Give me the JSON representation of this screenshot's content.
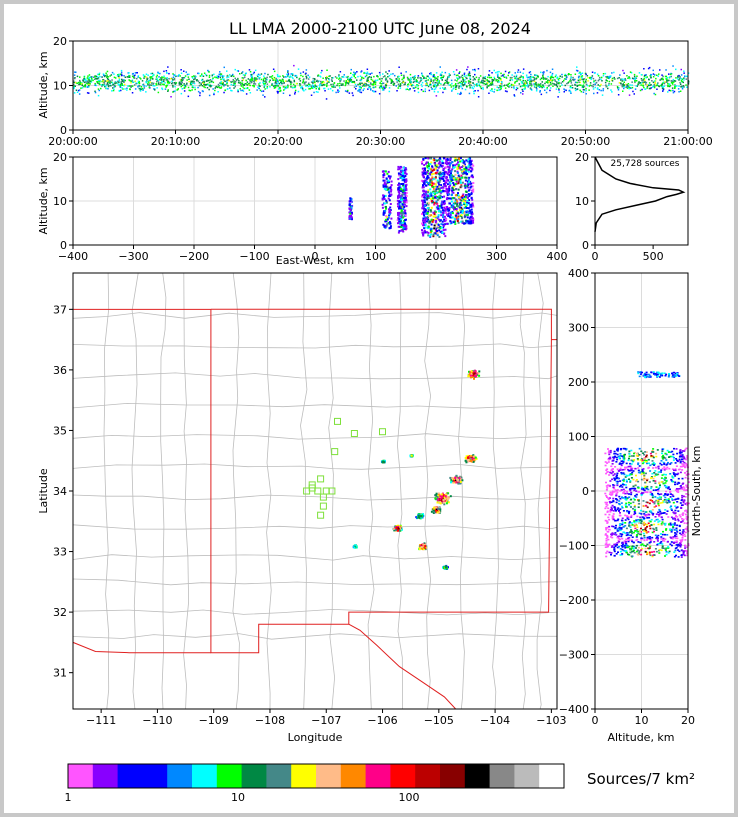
{
  "chart_data": [
    {
      "type": "scatter",
      "panel": "altitude-time",
      "title": "LL LMA 2000-2100 UTC June 08, 2024",
      "xlabel": "",
      "ylabel": "Altitude, km",
      "x_ticks": [
        "20:00:00",
        "20:10:00",
        "20:20:00",
        "20:30:00",
        "20:40:00",
        "20:50:00",
        "21:00:00"
      ],
      "y_ticks": [
        "0",
        "10",
        "20"
      ],
      "xlim": [
        "20:00:00",
        "21:00:00"
      ],
      "ylim": [
        0,
        20
      ],
      "density_peak_altitude_km": 11
    },
    {
      "type": "scatter",
      "panel": "east-west-altitude",
      "xlabel": "East-West, km",
      "ylabel": "Altitude, km",
      "x_ticks": [
        "−400",
        "−300",
        "−200",
        "−100",
        "0",
        "100",
        "200",
        "300",
        "400"
      ],
      "y_ticks": [
        "0",
        "10",
        "20"
      ],
      "xlim": [
        -400,
        400
      ],
      "ylim": [
        0,
        20
      ],
      "clusters": [
        {
          "x": [
            55,
            60
          ],
          "z": [
            6,
            11
          ]
        },
        {
          "x": [
            110,
            125
          ],
          "z": [
            4,
            17
          ]
        },
        {
          "x": [
            135,
            150
          ],
          "z": [
            3,
            18
          ]
        },
        {
          "x": [
            175,
            215
          ],
          "z": [
            2,
            20
          ]
        },
        {
          "x": [
            215,
            260
          ],
          "z": [
            5,
            20
          ]
        }
      ]
    },
    {
      "type": "line",
      "panel": "altitude-histogram",
      "annotation": "25,728 sources",
      "x_ticks": [
        "0",
        "500"
      ],
      "y_ticks": [
        "0",
        "10",
        "20"
      ],
      "xlim": [
        0,
        800
      ],
      "ylim": [
        0,
        20
      ],
      "points": [
        [
          0,
          3
        ],
        [
          10,
          5
        ],
        [
          60,
          7
        ],
        [
          180,
          8
        ],
        [
          350,
          9
        ],
        [
          520,
          10
        ],
        [
          620,
          11
        ],
        [
          700,
          11.5
        ],
        [
          760,
          12
        ],
        [
          720,
          12.5
        ],
        [
          500,
          13
        ],
        [
          300,
          14
        ],
        [
          180,
          15
        ],
        [
          120,
          16
        ],
        [
          60,
          17
        ],
        [
          20,
          19
        ],
        [
          0,
          20
        ]
      ]
    },
    {
      "type": "scatter",
      "panel": "plan-view-map",
      "xlabel": "Longitude",
      "ylabel": "Latitude",
      "x_ticks": [
        "−111",
        "−110",
        "−109",
        "−108",
        "−107",
        "−106",
        "−105",
        "−104",
        "−103"
      ],
      "y_ticks": [
        "31",
        "32",
        "33",
        "34",
        "35",
        "36",
        "37"
      ],
      "xlim": [
        -111.5,
        -102.9
      ],
      "ylim": [
        30.4,
        37.6
      ],
      "stations": [
        {
          "lon": -107.35,
          "lat": 34.0
        },
        {
          "lon": -107.25,
          "lat": 34.1
        },
        {
          "lon": -107.1,
          "lat": 34.2
        },
        {
          "lon": -107.15,
          "lat": 34.0
        },
        {
          "lon": -107.05,
          "lat": 33.9
        },
        {
          "lon": -106.9,
          "lat": 34.0
        },
        {
          "lon": -107.05,
          "lat": 33.75
        },
        {
          "lon": -107.1,
          "lat": 33.6
        },
        {
          "lon": -106.85,
          "lat": 34.65
        },
        {
          "lon": -106.8,
          "lat": 35.15
        },
        {
          "lon": -106.5,
          "lat": 34.95
        },
        {
          "lon": -106.0,
          "lat": 34.98
        },
        {
          "lon": -107.25,
          "lat": 34.05
        },
        {
          "lon": -107.0,
          "lat": 34.0
        }
      ],
      "source_clusters": [
        {
          "lon": -104.4,
          "lat": 35.95,
          "size": 0.15
        },
        {
          "lon": -104.45,
          "lat": 34.55,
          "size": 0.15
        },
        {
          "lon": -104.7,
          "lat": 34.2,
          "size": 0.15
        },
        {
          "lon": -104.95,
          "lat": 33.9,
          "size": 0.2
        },
        {
          "lon": -105.05,
          "lat": 33.7,
          "size": 0.12
        },
        {
          "lon": -105.35,
          "lat": 33.6,
          "size": 0.1
        },
        {
          "lon": -105.75,
          "lat": 33.4,
          "size": 0.12
        },
        {
          "lon": -105.3,
          "lat": 33.1,
          "size": 0.12
        },
        {
          "lon": -104.9,
          "lat": 32.75,
          "size": 0.06
        },
        {
          "lon": -106.5,
          "lat": 33.1,
          "size": 0.05
        },
        {
          "lon": -106.0,
          "lat": 34.5,
          "size": 0.05
        },
        {
          "lon": -105.5,
          "lat": 34.6,
          "size": 0.04
        }
      ]
    },
    {
      "type": "scatter",
      "panel": "altitude-north-south",
      "xlabel": "Altitude, km",
      "ylabel": "North-South, km",
      "x_ticks": [
        "0",
        "10",
        "20"
      ],
      "y_ticks": [
        "−400",
        "−300",
        "−200",
        "−100",
        "0",
        "100",
        "200",
        "300",
        "400"
      ],
      "xlim": [
        0,
        20
      ],
      "ylim": [
        -400,
        400
      ],
      "clusters": [
        {
          "ns": [
            210,
            220
          ],
          "z": [
            9,
            18
          ]
        },
        {
          "ns": [
            -120,
            80
          ],
          "z": [
            2,
            20
          ]
        }
      ]
    },
    {
      "type": "heatmap",
      "panel": "colorbar",
      "label": "Sources/7 km²",
      "tick_labels": [
        "1",
        "10",
        "100"
      ],
      "colors": [
        "#ff55ff",
        "#8800ff",
        "#0000ff",
        "#0000ff",
        "#0088ff",
        "#00ffff",
        "#00ff00",
        "#008844",
        "#448888",
        "#ffff00",
        "#ffbb88",
        "#ff8800",
        "#ff0088",
        "#ff0000",
        "#bb0000",
        "#880000",
        "#000000",
        "#888888",
        "#bbbbbb",
        "#ffffff"
      ]
    }
  ]
}
